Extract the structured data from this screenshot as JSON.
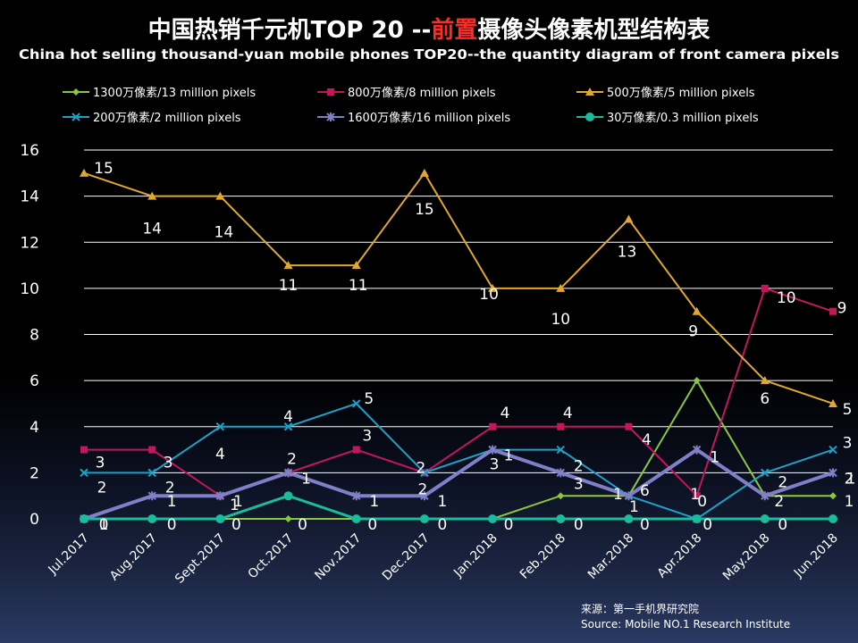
{
  "title_zh_prefix": "中国热销千元机TOP 20 --",
  "title_zh_highlight": "前置",
  "title_zh_suffix": "摄像头像素机型结构表",
  "title_en": "China hot selling thousand-yuan mobile phones TOP20--the quantity diagram of front camera pixels",
  "source_line1": "来源：第一手机界研究院",
  "source_line2": "Source: Mobile NO.1 Research Institute",
  "colors": {
    "highlight": "#ff2a2a"
  },
  "chart_data": {
    "type": "line",
    "categories": [
      "Jul.2017",
      "Aug.2017",
      "Sept.2017",
      "Oct.2017",
      "Nov.2017",
      "Dec.2017",
      "Jan.2018",
      "Feb.2018",
      "Mar.2018",
      "Apr.2018",
      "May.2018",
      "Jun.2018"
    ],
    "ylim": [
      0,
      16
    ],
    "yticks": [
      0,
      2,
      4,
      6,
      8,
      10,
      12,
      14,
      16
    ],
    "grid": true,
    "legend_position": "top",
    "series": [
      {
        "name": "1300万像素/13 million pixels",
        "color": "#8cc63f",
        "marker": "diamond",
        "values": [
          0,
          0,
          0,
          0,
          0,
          0,
          0,
          1,
          1,
          6,
          1,
          1
        ]
      },
      {
        "name": "800万像素/8 million pixels",
        "color": "#c2185b",
        "marker": "square",
        "values": [
          3,
          3,
          1,
          2,
          3,
          2,
          4,
          4,
          4,
          1,
          10,
          9
        ]
      },
      {
        "name": "500万像素/5 million pixels",
        "color": "#e0a82e",
        "marker": "triangle",
        "values": [
          15,
          14,
          14,
          11,
          11,
          15,
          10,
          10,
          13,
          9,
          6,
          5
        ]
      },
      {
        "name": "200万像素/2 million pixels",
        "color": "#1ea0c8",
        "marker": "x",
        "values": [
          2,
          2,
          4,
          4,
          5,
          2,
          3,
          3,
          1,
          0,
          2,
          3
        ]
      },
      {
        "name": "1600万像素/16 million pixels",
        "color": "#8080c8",
        "marker": "star",
        "values": [
          0,
          1,
          1,
          2,
          1,
          1,
          3,
          2,
          1,
          3,
          1,
          2
        ]
      },
      {
        "name": "30万像素/0.3 million pixels",
        "color": "#1abc9c",
        "marker": "circle",
        "values": [
          0,
          0,
          0,
          1,
          0,
          0,
          0,
          0,
          0,
          0,
          0,
          0
        ]
      }
    ],
    "data_labels": [
      {
        "text": "15"
      },
      {
        "text": "14"
      },
      {
        "text": "14"
      },
      {
        "text": "11"
      },
      {
        "text": "11"
      },
      {
        "text": "15"
      },
      {
        "text": "10"
      },
      {
        "text": "10"
      },
      {
        "text": "13"
      },
      {
        "text": "9"
      },
      {
        "text": "6"
      },
      {
        "text": "5"
      },
      {
        "text": "3"
      },
      {
        "text": "3"
      },
      {
        "text": "1"
      },
      {
        "text": "2"
      },
      {
        "text": "3"
      },
      {
        "text": "2"
      },
      {
        "text": "4"
      },
      {
        "text": "4"
      },
      {
        "text": "4"
      },
      {
        "text": "1"
      },
      {
        "text": "10"
      },
      {
        "text": "9"
      },
      {
        "text": "2"
      },
      {
        "text": "2"
      },
      {
        "text": "4"
      },
      {
        "text": "4"
      },
      {
        "text": "5"
      },
      {
        "text": "2"
      },
      {
        "text": "3"
      },
      {
        "text": "2"
      },
      {
        "text": "1"
      },
      {
        "text": "0"
      },
      {
        "text": "2"
      },
      {
        "text": "3"
      },
      {
        "text": "1"
      },
      {
        "text": "1"
      },
      {
        "text": "1"
      },
      {
        "text": "1"
      },
      {
        "text": "1"
      },
      {
        "text": "1"
      },
      {
        "text": "1"
      },
      {
        "text": "3"
      },
      {
        "text": "6"
      },
      {
        "text": "1"
      },
      {
        "text": "2"
      },
      {
        "text": "1"
      },
      {
        "text": "0"
      },
      {
        "text": "0"
      },
      {
        "text": "0"
      },
      {
        "text": "0"
      },
      {
        "text": "0"
      },
      {
        "text": "0"
      },
      {
        "text": "0"
      },
      {
        "text": "0"
      },
      {
        "text": "0"
      },
      {
        "text": "0"
      },
      {
        "text": "0"
      },
      {
        "text": "1"
      },
      {
        "text": "1"
      },
      {
        "text": "2"
      }
    ]
  }
}
